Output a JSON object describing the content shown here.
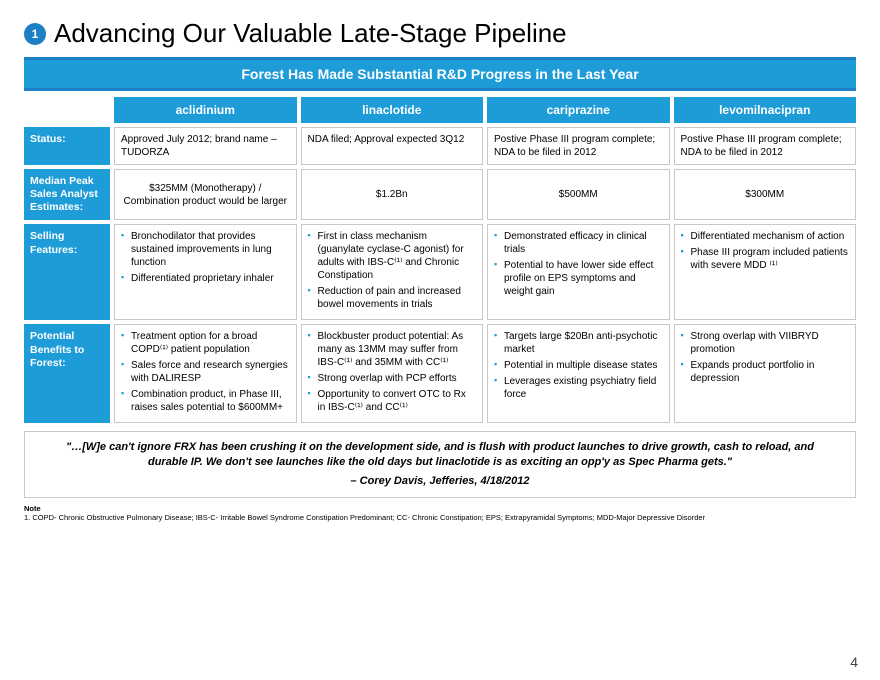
{
  "badge": "1",
  "title": "Advancing Our Valuable Late-Stage Pipeline",
  "banner": "Forest Has Made Substantial R&D Progress in the Last Year",
  "colHeaders": [
    "aclidinium",
    "linaclotide",
    "cariprazine",
    "levomilnacipran"
  ],
  "rows": {
    "status": {
      "label": "Status:",
      "cells": [
        "Approved July 2012; brand name – TUDORZA",
        "NDA filed; Approval expected 3Q12",
        "Postive Phase III program complete; NDA to be filed in 2012",
        "Postive Phase III program complete; NDA to be filed in 2012"
      ]
    },
    "sales": {
      "label": "Median Peak Sales Analyst Estimates:",
      "cells": [
        "$325MM (Monotherapy) / Combination product would be larger",
        "$1.2Bn",
        "$500MM",
        "$300MM"
      ]
    },
    "features": {
      "label": "Selling Features:",
      "bullets": [
        [
          "Bronchodilator that provides sustained improvements in lung function",
          "Differentiated proprietary inhaler"
        ],
        [
          "First in class mechanism (guanylate cyclase-C agonist) for adults with IBS-C⁽¹⁾ and Chronic Constipation",
          "Reduction of pain and increased bowel movements in trials"
        ],
        [
          "Demonstrated efficacy in clinical trials",
          "Potential to have lower side effect profile on EPS symptoms and weight gain"
        ],
        [
          "Differentiated mechanism of action",
          "Phase III program included patients with severe MDD ⁽¹⁾"
        ]
      ]
    },
    "benefits": {
      "label": "Potential Benefits to Forest:",
      "bullets": [
        [
          "Treatment option for a broad COPD⁽¹⁾ patient population",
          "Sales force and research synergies with DALIRESP",
          "Combination product, in Phase III, raises sales potential to $600MM+"
        ],
        [
          "Blockbuster product potential: As many as 13MM may suffer from IBS-C⁽¹⁾ and 35MM with CC⁽¹⁾",
          "Strong overlap with PCP efforts",
          "Opportunity to convert OTC to Rx in IBS-C⁽¹⁾ and CC⁽¹⁾"
        ],
        [
          "Targets large $20Bn anti-psychotic market",
          "Potential in multiple disease states",
          "Leverages existing psychiatry field force"
        ],
        [
          "Strong overlap with VIIBRYD promotion",
          "Expands product portfolio in depression"
        ]
      ]
    }
  },
  "quote": "\"…[W]e can't ignore FRX has been crushing it on the development side, and is flush with product launches to drive growth, cash to reload, and durable IP. We don't see launches like the old days but linaclotide is as exciting an opp'y as Spec Pharma gets.\"",
  "quoteAttr": "– Corey Davis, Jefferies, 4/18/2012",
  "noteLabel": "Note",
  "noteBody": "1.  COPD- Chronic Obstructive Pulmonary Disease; IBS-C- Irritable Bowel Syndrome Constipation Predominant; CC- Chronic Constipation; EPS; Extrapyramidal Symptoms; MDD-Major Depressive Disorder",
  "pageNum": "4",
  "colors": {
    "primary": "#1d9cd8",
    "accent": "#1d7fc4",
    "border": "#c8c8c8",
    "bg": "#ffffff"
  }
}
